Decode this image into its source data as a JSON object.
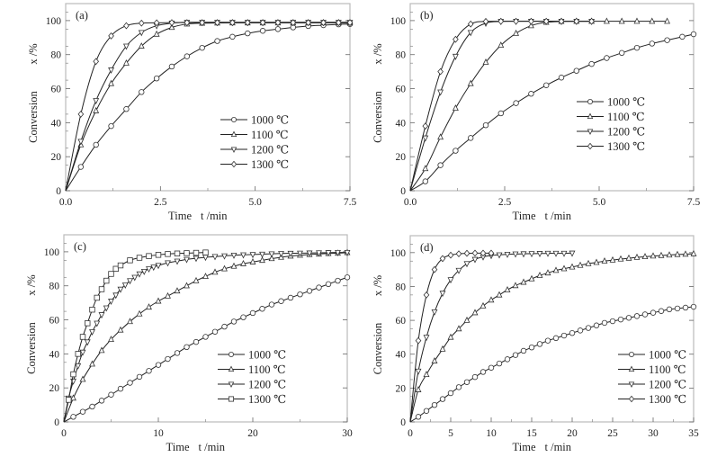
{
  "chart_data": [
    {
      "type": "line",
      "panel_label": "(a)",
      "xlabel": "Time",
      "xlabel_unit": "t /min",
      "ylabel": "Conversion",
      "ylabel_unit": "x /%",
      "xlim": [
        0,
        7.5
      ],
      "ylim": [
        0,
        110
      ],
      "xticks": [
        0.0,
        2.5,
        5.0,
        7.5
      ],
      "xtick_labels": [
        "0.0",
        "2.5",
        "5.0",
        "7.5"
      ],
      "yticks": [
        0,
        20,
        40,
        60,
        80,
        100
      ],
      "ytick_labels": [
        "0",
        "20",
        "40",
        "60",
        "80",
        "100"
      ],
      "grid": false,
      "legend_position": "center-right",
      "series": [
        {
          "name": "1000 ℃",
          "marker": "circle",
          "x": [
            0,
            0.4,
            0.8,
            1.2,
            1.6,
            2.0,
            2.4,
            2.8,
            3.2,
            3.6,
            4.0,
            4.4,
            4.8,
            5.2,
            5.6,
            6.0,
            6.4,
            6.8,
            7.2,
            7.5
          ],
          "y": [
            0,
            14,
            27,
            38,
            48,
            58,
            66,
            73,
            79,
            84,
            88,
            90.5,
            92.5,
            94,
            95,
            96,
            96.8,
            97.3,
            97.8,
            98
          ]
        },
        {
          "name": "1100 ℃",
          "marker": "triangle-up",
          "x": [
            0,
            0.4,
            0.8,
            1.2,
            1.6,
            2.0,
            2.4,
            2.8,
            3.2,
            3.6,
            4.0,
            4.4,
            4.8,
            5.2,
            5.6,
            6.0,
            6.4,
            6.8,
            7.2,
            7.5
          ],
          "y": [
            0,
            27,
            47,
            63,
            75,
            85,
            92,
            96,
            98,
            98.5,
            98.6,
            98.7,
            98.7,
            98.7,
            98.7,
            98.7,
            98.7,
            98.7,
            98.7,
            98.7
          ]
        },
        {
          "name": "1200 ℃",
          "marker": "triangle-down",
          "x": [
            0,
            0.4,
            0.8,
            1.2,
            1.6,
            2.0,
            2.4,
            2.8,
            3.2,
            3.6,
            4.0,
            4.4,
            4.8,
            5.2,
            5.6,
            6.0,
            6.4,
            6.8,
            7.2,
            7.5
          ],
          "y": [
            0,
            29,
            53,
            71,
            85,
            93,
            97,
            98.5,
            99,
            99,
            99,
            99,
            99,
            99,
            99,
            99,
            99,
            99,
            99,
            99
          ]
        },
        {
          "name": "1300 ℃",
          "marker": "diamond",
          "x": [
            0,
            0.4,
            0.8,
            1.2,
            1.6,
            2.0,
            2.4,
            2.8,
            3.2,
            3.6,
            4.0,
            4.4,
            4.8,
            5.2,
            5.6,
            6.0,
            6.4,
            6.8,
            7.2,
            7.5
          ],
          "y": [
            0,
            45,
            76,
            91,
            97,
            98.5,
            98.7,
            98.8,
            98.8,
            98.8,
            98.8,
            98.8,
            98.8,
            98.8,
            98.8,
            98.8,
            98.8,
            98.8,
            98.8,
            98.8
          ]
        }
      ]
    },
    {
      "type": "line",
      "panel_label": "(b)",
      "xlabel": "Time",
      "xlabel_unit": "t /min",
      "ylabel": "Conversion",
      "ylabel_unit": "x /%",
      "xlim": [
        0,
        7.5
      ],
      "ylim": [
        0,
        110
      ],
      "xticks": [
        0.0,
        2.5,
        5.0,
        7.5
      ],
      "xtick_labels": [
        "0.0",
        "2.5",
        "5.0",
        "7.5"
      ],
      "yticks": [
        0,
        20,
        40,
        60,
        80,
        100
      ],
      "ytick_labels": [
        "0",
        "20",
        "40",
        "60",
        "80",
        "100"
      ],
      "grid": false,
      "legend_position": "center-right",
      "series": [
        {
          "name": "1000 ℃",
          "marker": "circle",
          "x": [
            0,
            0.4,
            0.8,
            1.2,
            1.6,
            2.0,
            2.4,
            2.8,
            3.2,
            3.6,
            4.0,
            4.4,
            4.8,
            5.2,
            5.6,
            6.0,
            6.4,
            6.8,
            7.2,
            7.5
          ],
          "y": [
            0,
            5.5,
            15,
            23.5,
            31,
            38.5,
            45.5,
            51.5,
            57,
            62,
            66.5,
            70.5,
            74.5,
            78,
            81,
            84,
            86.5,
            88.5,
            90.5,
            92
          ]
        },
        {
          "name": "1100 ℃",
          "marker": "triangle-up",
          "x": [
            0,
            0.4,
            0.8,
            1.2,
            1.6,
            2.0,
            2.4,
            2.8,
            3.2,
            3.6,
            4.0,
            4.4,
            4.8,
            5.2,
            5.6,
            6.0,
            6.4,
            6.8
          ],
          "y": [
            0,
            13,
            31.5,
            48.5,
            63,
            75.5,
            85.5,
            92.5,
            97,
            99,
            99.5,
            99.6,
            99.6,
            99.6,
            99.6,
            99.6,
            99.6,
            99.6
          ]
        },
        {
          "name": "1200 ℃",
          "marker": "triangle-down",
          "x": [
            0,
            0.4,
            0.8,
            1.2,
            1.6,
            2.0,
            2.4,
            2.8,
            3.2,
            3.6,
            4.0,
            4.4,
            4.8
          ],
          "y": [
            0,
            31,
            58,
            79,
            93,
            98.5,
            99.5,
            99.6,
            99.6,
            99.6,
            99.6,
            99.6,
            99.6
          ]
        },
        {
          "name": "1300 ℃",
          "marker": "diamond",
          "x": [
            0,
            0.4,
            0.8,
            1.2,
            1.6,
            2.0,
            2.4,
            2.8,
            3.2,
            3.6,
            4.0,
            4.4,
            4.8
          ],
          "y": [
            0,
            38,
            70,
            89,
            98,
            99.5,
            99.6,
            99.6,
            99.6,
            99.6,
            99.6,
            99.6,
            99.6
          ]
        }
      ]
    },
    {
      "type": "line",
      "panel_label": "(c)",
      "xlabel": "Time",
      "xlabel_unit": "t /min",
      "ylabel": "Conversion",
      "ylabel_unit": "x /%",
      "xlim": [
        0,
        30
      ],
      "ylim": [
        0,
        110
      ],
      "xticks": [
        0,
        10,
        20,
        30
      ],
      "xtick_labels": [
        "0",
        "10",
        "20",
        "30"
      ],
      "yticks": [
        0,
        20,
        40,
        60,
        80,
        100
      ],
      "ytick_labels": [
        "0",
        "20",
        "40",
        "60",
        "80",
        "100"
      ],
      "grid": false,
      "legend_position": "center-right",
      "series": [
        {
          "name": "1000 ℃",
          "marker": "circle",
          "x": [
            0,
            1,
            2,
            3,
            4,
            5,
            6,
            7,
            8,
            9,
            10,
            11,
            12,
            13,
            14,
            15,
            16,
            17,
            18,
            19,
            20,
            21,
            22,
            23,
            24,
            25,
            26,
            27,
            28,
            29,
            30
          ],
          "y": [
            0,
            3,
            6,
            9,
            12.5,
            16,
            19.5,
            23,
            26.5,
            30,
            33.5,
            37,
            40.5,
            44,
            47,
            50,
            53,
            56,
            59,
            61.5,
            64,
            66.5,
            69,
            71,
            73,
            75,
            77,
            79,
            81,
            83,
            85
          ]
        },
        {
          "name": "1100 ℃",
          "marker": "triangle-up",
          "x": [
            0,
            1,
            2,
            3,
            4,
            5,
            6,
            7,
            8,
            9,
            10,
            11,
            12,
            13,
            14,
            15,
            16,
            17,
            18,
            19,
            20,
            21,
            22,
            23,
            24,
            25,
            26,
            27,
            28,
            29,
            30
          ],
          "y": [
            0,
            14,
            25,
            34,
            42,
            48.5,
            54,
            59,
            63.5,
            67.5,
            71,
            74,
            77,
            80,
            83,
            85.5,
            88,
            90,
            91.5,
            93,
            94,
            95,
            96,
            96.8,
            97.5,
            98,
            98.4,
            98.7,
            99,
            99.2,
            99.5
          ]
        },
        {
          "name": "1200 ℃",
          "marker": "triangle-down",
          "x": [
            0,
            0.5,
            1,
            1.5,
            2,
            2.5,
            3,
            3.5,
            4,
            4.5,
            5,
            5.5,
            6,
            6.5,
            7,
            7.5,
            8,
            8.5,
            9,
            9.5,
            10,
            11,
            12,
            13,
            14,
            15,
            16,
            17,
            18,
            19,
            20,
            21,
            22,
            23,
            24,
            25,
            26,
            27,
            28,
            29,
            30
          ],
          "y": [
            0,
            14,
            24,
            33,
            41,
            47,
            53,
            58,
            63,
            67,
            71,
            74.5,
            78,
            80.5,
            83,
            85,
            87,
            88.5,
            90,
            91,
            92,
            93.5,
            94.5,
            95.5,
            96.2,
            96.8,
            97.2,
            97.6,
            98,
            98.2,
            98.4,
            98.6,
            98.8,
            99,
            99.1,
            99.2,
            99.3,
            99.4,
            99.5,
            99.6,
            99.6
          ]
        },
        {
          "name": "1300 ℃",
          "marker": "square",
          "x": [
            0,
            0.5,
            1,
            1.5,
            2,
            2.5,
            3,
            3.5,
            4,
            4.5,
            5,
            5.5,
            6,
            7,
            8,
            9,
            10,
            11,
            12,
            13,
            14,
            15
          ],
          "y": [
            0,
            13,
            28,
            40,
            50,
            58,
            66,
            73,
            78,
            83,
            87,
            90,
            92,
            95,
            96.5,
            97.5,
            98.2,
            98.7,
            99,
            99.2,
            99.4,
            99.6
          ]
        }
      ]
    },
    {
      "type": "line",
      "panel_label": "(d)",
      "xlabel": "Time",
      "xlabel_unit": "t /min",
      "ylabel": "Conversion",
      "ylabel_unit": "x /%",
      "xlim": [
        0,
        35
      ],
      "ylim": [
        0,
        110
      ],
      "xticks": [
        0,
        5,
        10,
        15,
        20,
        25,
        30,
        35
      ],
      "xtick_labels": [
        "0",
        "5",
        "10",
        "15",
        "20",
        "25",
        "30",
        "35"
      ],
      "yticks": [
        0,
        20,
        40,
        60,
        80,
        100
      ],
      "ytick_labels": [
        "0",
        "20",
        "40",
        "60",
        "80",
        "100"
      ],
      "grid": false,
      "legend_position": "center-right",
      "series": [
        {
          "name": "1000 ℃",
          "marker": "circle",
          "x": [
            0,
            1,
            2,
            3,
            4,
            5,
            6,
            7,
            8,
            9,
            10,
            11,
            12,
            13,
            14,
            15,
            16,
            17,
            18,
            19,
            20,
            21,
            22,
            23,
            24,
            25,
            26,
            27,
            28,
            29,
            30,
            31,
            32,
            33,
            34,
            35
          ],
          "y": [
            0,
            3,
            6.5,
            10,
            13.5,
            17,
            20.5,
            23.5,
            26.5,
            29.5,
            32,
            34.5,
            37,
            39.5,
            42,
            44,
            46,
            48,
            49.5,
            51,
            52.5,
            54,
            55.5,
            57,
            58.5,
            59.5,
            60.5,
            61.5,
            62.5,
            63.5,
            64.5,
            65.5,
            66.5,
            67,
            67.5,
            68
          ]
        },
        {
          "name": "1100 ℃",
          "marker": "triangle-up",
          "x": [
            0,
            1,
            2,
            3,
            4,
            5,
            6,
            7,
            8,
            9,
            10,
            11,
            12,
            13,
            14,
            15,
            16,
            17,
            18,
            19,
            20,
            21,
            22,
            23,
            24,
            25,
            26,
            27,
            28,
            29,
            30,
            31,
            32,
            33,
            34,
            35
          ],
          "y": [
            0,
            19,
            28,
            36,
            43,
            50,
            55,
            60,
            64.5,
            68.5,
            72,
            75,
            78,
            80.5,
            82.5,
            84.5,
            86.5,
            88,
            89.5,
            90.5,
            91.5,
            92.5,
            93.5,
            94.2,
            95,
            95.6,
            96.2,
            96.7,
            97.2,
            97.6,
            98,
            98.3,
            98.6,
            98.9,
            99.1,
            99.3
          ]
        },
        {
          "name": "1200 ℃",
          "marker": "triangle-down",
          "x": [
            0,
            1,
            2,
            3,
            4,
            5,
            6,
            7,
            8,
            9,
            10,
            11,
            12,
            13,
            14,
            15,
            16,
            17,
            18,
            19,
            20
          ],
          "y": [
            0,
            30,
            50,
            65,
            76,
            84,
            89.5,
            93.5,
            96,
            97.5,
            98.3,
            98.7,
            99,
            99.2,
            99.3,
            99.4,
            99.5,
            99.6,
            99.6,
            99.6,
            99.7
          ]
        },
        {
          "name": "1300 ℃",
          "marker": "diamond",
          "x": [
            0,
            1,
            2,
            3,
            4,
            5,
            6,
            7,
            8,
            9,
            10
          ],
          "y": [
            0,
            48,
            75,
            90,
            96.5,
            98.5,
            99.3,
            99.6,
            99.7,
            99.7,
            99.7
          ]
        }
      ]
    }
  ]
}
